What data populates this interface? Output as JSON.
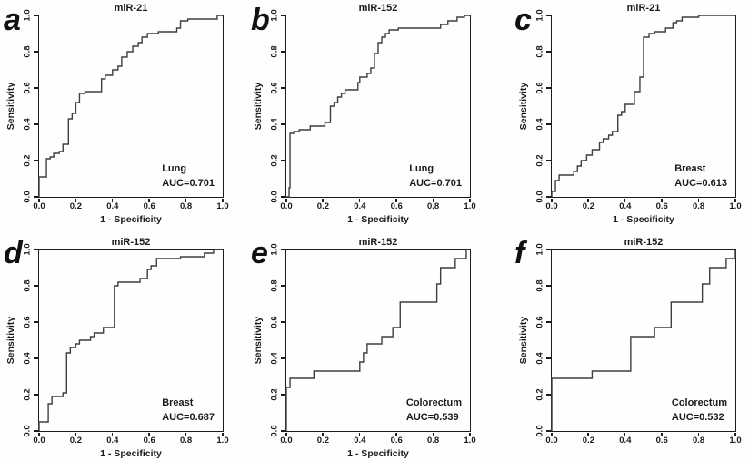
{
  "figure": {
    "description": "Six ROC curve panels",
    "background": "#fefefe"
  },
  "colors": {
    "curve": "#3f3f3f",
    "frame": "#1c1c1c",
    "text": "#1a1a1a"
  },
  "axis": {
    "tick_labels": [
      "0.0",
      "0.2",
      "0.4",
      "0.6",
      "0.8",
      "1.0"
    ],
    "tick_values": [
      0,
      0.2,
      0.4,
      0.6,
      0.8,
      1.0
    ],
    "xlim": [
      0,
      1
    ],
    "ylim": [
      0,
      1
    ]
  },
  "chart_data": [
    {
      "type": "line",
      "panel_label": "a",
      "title": "miR-21",
      "xlabel": "1 - Specificity",
      "ylabel": "Sensitivity",
      "xlim": [
        0,
        1
      ],
      "ylim": [
        0,
        1
      ],
      "annotation": {
        "tissue": "Lung",
        "auc_label": "AUC=0.701",
        "auc": 0.701
      },
      "roc_points": [
        [
          0,
          0
        ],
        [
          0,
          0.11
        ],
        [
          0.04,
          0.11
        ],
        [
          0.04,
          0.21
        ],
        [
          0.06,
          0.21
        ],
        [
          0.06,
          0.22
        ],
        [
          0.08,
          0.22
        ],
        [
          0.08,
          0.24
        ],
        [
          0.11,
          0.24
        ],
        [
          0.11,
          0.25
        ],
        [
          0.13,
          0.25
        ],
        [
          0.13,
          0.29
        ],
        [
          0.16,
          0.29
        ],
        [
          0.16,
          0.43
        ],
        [
          0.18,
          0.43
        ],
        [
          0.18,
          0.46
        ],
        [
          0.2,
          0.46
        ],
        [
          0.2,
          0.52
        ],
        [
          0.22,
          0.52
        ],
        [
          0.22,
          0.57
        ],
        [
          0.25,
          0.57
        ],
        [
          0.25,
          0.58
        ],
        [
          0.34,
          0.58
        ],
        [
          0.34,
          0.65
        ],
        [
          0.36,
          0.65
        ],
        [
          0.36,
          0.67
        ],
        [
          0.4,
          0.67
        ],
        [
          0.4,
          0.7
        ],
        [
          0.43,
          0.7
        ],
        [
          0.43,
          0.72
        ],
        [
          0.45,
          0.72
        ],
        [
          0.45,
          0.77
        ],
        [
          0.48,
          0.77
        ],
        [
          0.48,
          0.8
        ],
        [
          0.51,
          0.8
        ],
        [
          0.51,
          0.83
        ],
        [
          0.54,
          0.83
        ],
        [
          0.54,
          0.85
        ],
        [
          0.56,
          0.85
        ],
        [
          0.56,
          0.88
        ],
        [
          0.59,
          0.88
        ],
        [
          0.59,
          0.9
        ],
        [
          0.65,
          0.9
        ],
        [
          0.65,
          0.91
        ],
        [
          0.75,
          0.91
        ],
        [
          0.75,
          0.93
        ],
        [
          0.77,
          0.93
        ],
        [
          0.77,
          0.97
        ],
        [
          0.81,
          0.97
        ],
        [
          0.81,
          0.98
        ],
        [
          0.97,
          0.98
        ],
        [
          0.97,
          1
        ],
        [
          1,
          1
        ]
      ]
    },
    {
      "type": "line",
      "panel_label": "b",
      "title": "miR-152",
      "xlabel": "1 - Specificity",
      "ylabel": "Sensitivity",
      "xlim": [
        0,
        1
      ],
      "ylim": [
        0,
        1
      ],
      "annotation": {
        "tissue": "Lung",
        "auc_label": "AUC=0.701",
        "auc": 0.701
      },
      "roc_points": [
        [
          0,
          0
        ],
        [
          0.015,
          0
        ],
        [
          0.015,
          0.05
        ],
        [
          0.02,
          0.05
        ],
        [
          0.02,
          0.35
        ],
        [
          0.04,
          0.35
        ],
        [
          0.04,
          0.36
        ],
        [
          0.07,
          0.36
        ],
        [
          0.07,
          0.37
        ],
        [
          0.13,
          0.37
        ],
        [
          0.13,
          0.39
        ],
        [
          0.21,
          0.39
        ],
        [
          0.21,
          0.41
        ],
        [
          0.24,
          0.41
        ],
        [
          0.24,
          0.5
        ],
        [
          0.26,
          0.5
        ],
        [
          0.26,
          0.52
        ],
        [
          0.28,
          0.52
        ],
        [
          0.28,
          0.55
        ],
        [
          0.3,
          0.55
        ],
        [
          0.3,
          0.57
        ],
        [
          0.32,
          0.57
        ],
        [
          0.32,
          0.59
        ],
        [
          0.39,
          0.59
        ],
        [
          0.39,
          0.63
        ],
        [
          0.4,
          0.63
        ],
        [
          0.4,
          0.66
        ],
        [
          0.44,
          0.66
        ],
        [
          0.44,
          0.68
        ],
        [
          0.46,
          0.68
        ],
        [
          0.46,
          0.71
        ],
        [
          0.48,
          0.71
        ],
        [
          0.48,
          0.79
        ],
        [
          0.5,
          0.79
        ],
        [
          0.5,
          0.85
        ],
        [
          0.52,
          0.85
        ],
        [
          0.52,
          0.88
        ],
        [
          0.54,
          0.88
        ],
        [
          0.54,
          0.9
        ],
        [
          0.56,
          0.9
        ],
        [
          0.56,
          0.92
        ],
        [
          0.61,
          0.92
        ],
        [
          0.61,
          0.93
        ],
        [
          0.84,
          0.93
        ],
        [
          0.84,
          0.95
        ],
        [
          0.88,
          0.95
        ],
        [
          0.88,
          0.97
        ],
        [
          0.93,
          0.97
        ],
        [
          0.93,
          0.99
        ],
        [
          0.97,
          0.99
        ],
        [
          0.97,
          1
        ],
        [
          1,
          1
        ]
      ]
    },
    {
      "type": "line",
      "panel_label": "c",
      "title": "miR-21",
      "xlabel": "1 - Specificity",
      "ylabel": "Sensitivity",
      "xlim": [
        0,
        1
      ],
      "ylim": [
        0,
        1
      ],
      "annotation": {
        "tissue": "Breast",
        "auc_label": "AUC=0.613",
        "auc": 0.613
      },
      "roc_points": [
        [
          0,
          0
        ],
        [
          0,
          0.03
        ],
        [
          0.02,
          0.03
        ],
        [
          0.02,
          0.09
        ],
        [
          0.04,
          0.09
        ],
        [
          0.04,
          0.12
        ],
        [
          0.12,
          0.12
        ],
        [
          0.12,
          0.14
        ],
        [
          0.14,
          0.14
        ],
        [
          0.14,
          0.17
        ],
        [
          0.16,
          0.17
        ],
        [
          0.16,
          0.2
        ],
        [
          0.19,
          0.2
        ],
        [
          0.19,
          0.23
        ],
        [
          0.22,
          0.23
        ],
        [
          0.22,
          0.26
        ],
        [
          0.26,
          0.26
        ],
        [
          0.26,
          0.3
        ],
        [
          0.28,
          0.3
        ],
        [
          0.28,
          0.32
        ],
        [
          0.31,
          0.32
        ],
        [
          0.31,
          0.34
        ],
        [
          0.33,
          0.34
        ],
        [
          0.33,
          0.36
        ],
        [
          0.36,
          0.36
        ],
        [
          0.36,
          0.45
        ],
        [
          0.38,
          0.45
        ],
        [
          0.38,
          0.47
        ],
        [
          0.4,
          0.47
        ],
        [
          0.4,
          0.51
        ],
        [
          0.45,
          0.51
        ],
        [
          0.45,
          0.58
        ],
        [
          0.48,
          0.58
        ],
        [
          0.48,
          0.66
        ],
        [
          0.5,
          0.66
        ],
        [
          0.5,
          0.88
        ],
        [
          0.53,
          0.88
        ],
        [
          0.53,
          0.9
        ],
        [
          0.56,
          0.9
        ],
        [
          0.56,
          0.91
        ],
        [
          0.62,
          0.91
        ],
        [
          0.62,
          0.93
        ],
        [
          0.66,
          0.93
        ],
        [
          0.66,
          0.96
        ],
        [
          0.68,
          0.96
        ],
        [
          0.68,
          0.97
        ],
        [
          0.71,
          0.97
        ],
        [
          0.71,
          0.99
        ],
        [
          0.8,
          0.99
        ],
        [
          0.8,
          1
        ],
        [
          1,
          1
        ]
      ]
    },
    {
      "type": "line",
      "panel_label": "d",
      "title": "miR-152",
      "xlabel": "1 - Specificity",
      "ylabel": "Sensitivity",
      "xlim": [
        0,
        1
      ],
      "ylim": [
        0,
        1
      ],
      "annotation": {
        "tissue": "Breast",
        "auc_label": "AUC=0.687",
        "auc": 0.687
      },
      "roc_points": [
        [
          0,
          0
        ],
        [
          0,
          0.05
        ],
        [
          0.05,
          0.05
        ],
        [
          0.05,
          0.15
        ],
        [
          0.07,
          0.15
        ],
        [
          0.07,
          0.19
        ],
        [
          0.13,
          0.19
        ],
        [
          0.13,
          0.21
        ],
        [
          0.15,
          0.21
        ],
        [
          0.15,
          0.43
        ],
        [
          0.17,
          0.43
        ],
        [
          0.17,
          0.46
        ],
        [
          0.2,
          0.46
        ],
        [
          0.2,
          0.48
        ],
        [
          0.22,
          0.48
        ],
        [
          0.22,
          0.5
        ],
        [
          0.28,
          0.5
        ],
        [
          0.28,
          0.52
        ],
        [
          0.3,
          0.52
        ],
        [
          0.3,
          0.54
        ],
        [
          0.35,
          0.54
        ],
        [
          0.35,
          0.57
        ],
        [
          0.41,
          0.57
        ],
        [
          0.41,
          0.8
        ],
        [
          0.43,
          0.8
        ],
        [
          0.43,
          0.82
        ],
        [
          0.55,
          0.82
        ],
        [
          0.55,
          0.84
        ],
        [
          0.59,
          0.84
        ],
        [
          0.59,
          0.89
        ],
        [
          0.61,
          0.89
        ],
        [
          0.61,
          0.91
        ],
        [
          0.64,
          0.91
        ],
        [
          0.64,
          0.95
        ],
        [
          0.77,
          0.95
        ],
        [
          0.77,
          0.96
        ],
        [
          0.9,
          0.96
        ],
        [
          0.9,
          0.98
        ],
        [
          0.95,
          0.98
        ],
        [
          0.95,
          1
        ],
        [
          1,
          1
        ]
      ]
    },
    {
      "type": "line",
      "panel_label": "e",
      "title": "miR-152",
      "xlabel": "1 - Specificity",
      "ylabel": "Sensitivity",
      "xlim": [
        0,
        1
      ],
      "ylim": [
        0,
        1
      ],
      "annotation": {
        "tissue": "Colorectum",
        "auc_label": "AUC=0.539",
        "auc": 0.539
      },
      "roc_points": [
        [
          0,
          0
        ],
        [
          0,
          0.24
        ],
        [
          0.02,
          0.24
        ],
        [
          0.02,
          0.29
        ],
        [
          0.15,
          0.29
        ],
        [
          0.15,
          0.33
        ],
        [
          0.4,
          0.33
        ],
        [
          0.4,
          0.38
        ],
        [
          0.42,
          0.38
        ],
        [
          0.42,
          0.43
        ],
        [
          0.44,
          0.43
        ],
        [
          0.44,
          0.48
        ],
        [
          0.52,
          0.48
        ],
        [
          0.52,
          0.52
        ],
        [
          0.58,
          0.52
        ],
        [
          0.58,
          0.57
        ],
        [
          0.62,
          0.57
        ],
        [
          0.62,
          0.71
        ],
        [
          0.82,
          0.71
        ],
        [
          0.82,
          0.81
        ],
        [
          0.84,
          0.81
        ],
        [
          0.84,
          0.9
        ],
        [
          0.92,
          0.9
        ],
        [
          0.92,
          0.95
        ],
        [
          0.98,
          0.95
        ],
        [
          0.98,
          1
        ],
        [
          1,
          1
        ]
      ]
    },
    {
      "type": "line",
      "panel_label": "f",
      "title": "miR-152",
      "xlabel": "",
      "ylabel": "Sensitivity",
      "xlim": [
        0,
        1
      ],
      "ylim": [
        0,
        1
      ],
      "annotation": {
        "tissue": "Colorectum",
        "auc_label": "AUC=0.532",
        "auc": 0.532
      },
      "roc_points": [
        [
          0,
          0
        ],
        [
          0,
          0.29
        ],
        [
          0.22,
          0.29
        ],
        [
          0.22,
          0.33
        ],
        [
          0.43,
          0.33
        ],
        [
          0.43,
          0.52
        ],
        [
          0.56,
          0.52
        ],
        [
          0.56,
          0.57
        ],
        [
          0.65,
          0.57
        ],
        [
          0.65,
          0.71
        ],
        [
          0.82,
          0.71
        ],
        [
          0.82,
          0.81
        ],
        [
          0.86,
          0.81
        ],
        [
          0.86,
          0.9
        ],
        [
          0.95,
          0.9
        ],
        [
          0.95,
          0.95
        ],
        [
          1,
          0.95
        ],
        [
          1,
          1
        ]
      ]
    }
  ]
}
